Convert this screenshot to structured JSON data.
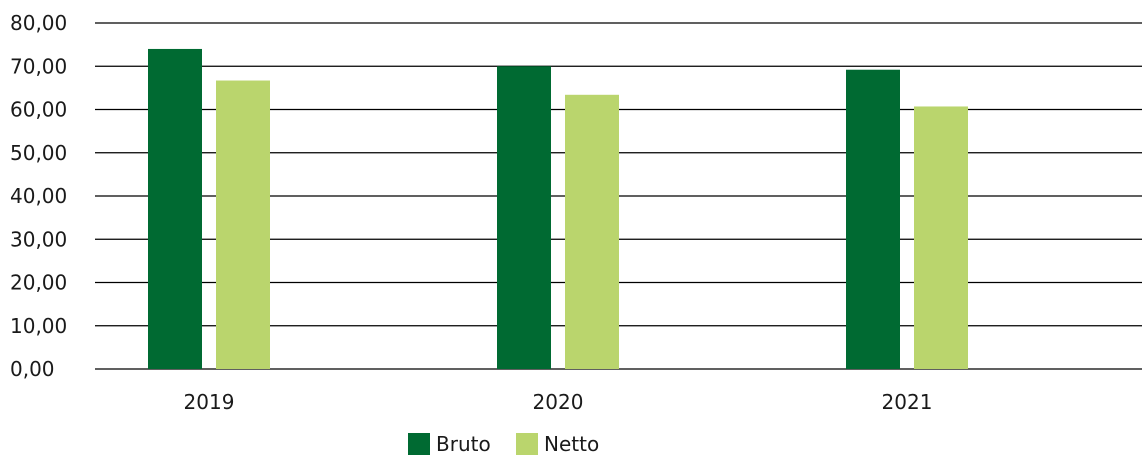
{
  "chart_data": {
    "type": "bar",
    "categories": [
      "2019",
      "2020",
      "2021"
    ],
    "series": [
      {
        "name": "Bruto",
        "color": "#006a32",
        "values": [
          74.0,
          70.0,
          69.2
        ]
      },
      {
        "name": "Netto",
        "color": "#bad56d",
        "values": [
          66.7,
          63.4,
          60.7
        ]
      }
    ],
    "y_ticks": [
      "0,00",
      "10,00",
      "20,00",
      "30,00",
      "40,00",
      "50,00",
      "60,00",
      "70,00",
      "80,00"
    ],
    "ylim": [
      0,
      80
    ],
    "grid": true,
    "legend": "bottom-center"
  }
}
